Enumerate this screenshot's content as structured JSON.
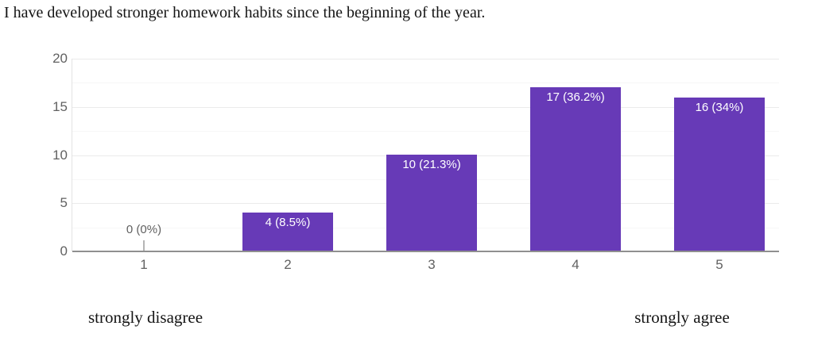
{
  "chart_data": {
    "type": "bar",
    "title": "I have developed stronger homework habits since the beginning of the year.",
    "categories": [
      "1",
      "2",
      "3",
      "4",
      "5"
    ],
    "values": [
      0,
      4,
      10,
      17,
      16
    ],
    "value_labels": [
      "0 (0%)",
      "4 (8.5%)",
      "10 (21.3%)",
      "17 (36.2%)",
      "16 (34%)"
    ],
    "xlabel": "",
    "ylabel": "",
    "ylim": [
      0,
      20
    ],
    "yticks": [
      0,
      5,
      10,
      15,
      20
    ],
    "minor_yticks": [
      2.5,
      7.5,
      12.5,
      17.5
    ],
    "grid": true,
    "legend": "none",
    "annotations": {
      "left": "strongly disagree",
      "right": "strongly agree"
    },
    "colors": {
      "bar": "#673ab7",
      "bar_label": "#ffffff",
      "axis_text": "#616161",
      "zero_label": "#616161",
      "baseline": "#8f8f8f",
      "major_grid": "#ebebeb",
      "minor_grid": "#f7f7f7",
      "zero_tick": "#b5b5b5",
      "title_text": "#141414"
    }
  }
}
